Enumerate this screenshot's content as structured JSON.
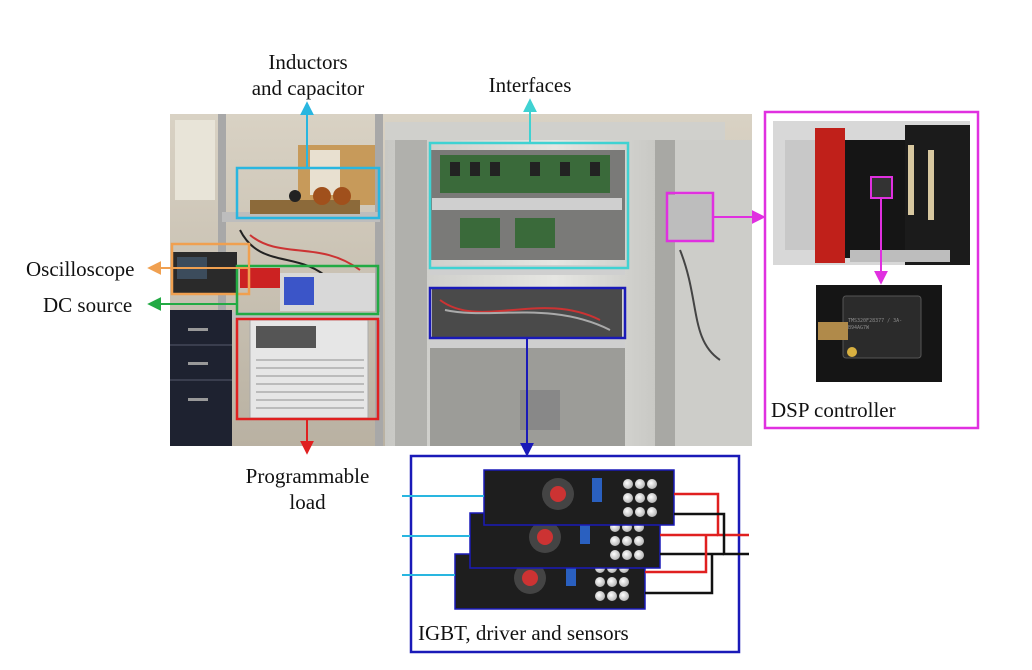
{
  "labels": {
    "inductors_line1": "Inductors",
    "inductors_line2": "and capacitor",
    "interfaces": "Interfaces",
    "oscilloscope": "Oscilloscope",
    "dc_source": "DC source",
    "programmable_line1": "Programmable",
    "programmable_line2": "load",
    "dsp_controller": "DSP controller",
    "igbt_caption": "IGBT, driver and sensors",
    "chip_text": "TMS320F28377 / 3A-B94AG7W"
  },
  "colors": {
    "inductors": "#29b6e0",
    "interfaces": "#3fd2d2",
    "oscilloscope": "#f0a050",
    "dc_source": "#22aa44",
    "programmable_load": "#e02020",
    "igbt": "#1a1ab8",
    "dsp": "#e030e0",
    "wire_blue": "#29b6e0",
    "wire_red": "#e02020",
    "wire_black": "#111111"
  }
}
